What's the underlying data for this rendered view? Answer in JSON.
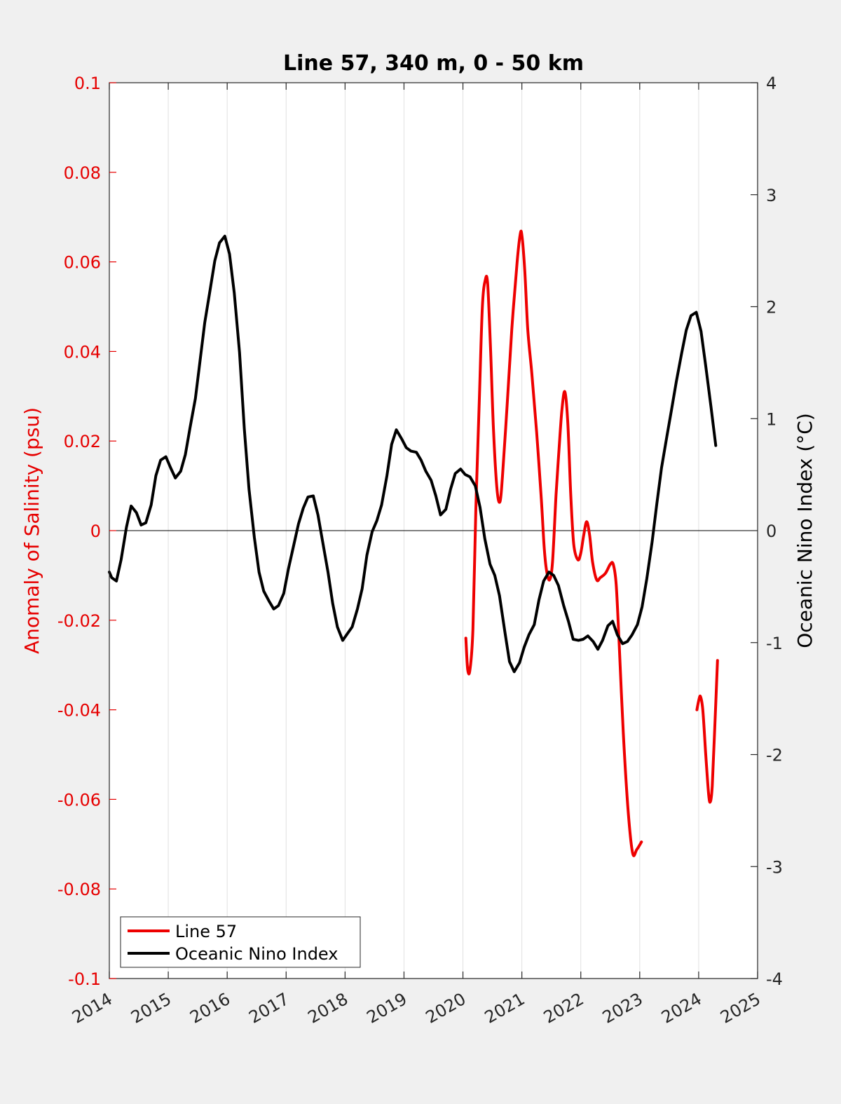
{
  "chart_data": {
    "type": "line",
    "title": "Line 57, 340 m, 0 - 50 km",
    "xlabel": "",
    "ylabel_left": "Anomaly of Salinity (psu)",
    "ylabel_right": "Oceanic Nino Index (°C)",
    "xlim": [
      2014,
      2025
    ],
    "ylim_left": [
      -0.1,
      0.1
    ],
    "ylim_right": [
      -4,
      4
    ],
    "x_ticks": [
      "2014",
      "2015",
      "2016",
      "2017",
      "2018",
      "2019",
      "2020",
      "2021",
      "2022",
      "2023",
      "2024",
      "2025"
    ],
    "y_ticks_left": [
      "0.1",
      "0.08",
      "0.06",
      "0.04",
      "0.02",
      "0",
      "-0.02",
      "-0.04",
      "-0.06",
      "-0.08",
      "-0.1"
    ],
    "y_ticks_right": [
      "4",
      "3",
      "2",
      "1",
      "0",
      "-1",
      "-2",
      "-3",
      "-4"
    ],
    "grid": "vertical",
    "legend_position": "bottom-left",
    "colors": {
      "left_axis": "#e60000",
      "line57": "#ee0000",
      "oni": "#000000"
    },
    "series": [
      {
        "name": "Line 57",
        "axis": "left",
        "segments": [
          [
            [
              2020.05,
              -0.024
            ],
            [
              2020.08,
              -0.031
            ],
            [
              2020.12,
              -0.031
            ],
            [
              2020.17,
              -0.022
            ],
            [
              2020.22,
              0.005
            ],
            [
              2020.28,
              0.03
            ],
            [
              2020.33,
              0.05
            ],
            [
              2020.38,
              0.056
            ],
            [
              2020.42,
              0.055
            ],
            [
              2020.47,
              0.04
            ],
            [
              2020.52,
              0.022
            ],
            [
              2020.58,
              0.009
            ],
            [
              2020.63,
              0.0065
            ],
            [
              2020.67,
              0.012
            ],
            [
              2020.75,
              0.028
            ],
            [
              2020.83,
              0.045
            ],
            [
              2020.92,
              0.06
            ],
            [
              2020.97,
              0.066
            ],
            [
              2021.0,
              0.066
            ],
            [
              2021.05,
              0.058
            ],
            [
              2021.1,
              0.045
            ],
            [
              2021.17,
              0.035
            ],
            [
              2021.25,
              0.022
            ],
            [
              2021.33,
              0.007
            ],
            [
              2021.38,
              -0.004
            ],
            [
              2021.42,
              -0.009
            ],
            [
              2021.47,
              -0.011
            ],
            [
              2021.52,
              -0.007
            ],
            [
              2021.58,
              0.008
            ],
            [
              2021.63,
              0.018
            ],
            [
              2021.68,
              0.027
            ],
            [
              2021.73,
              0.031
            ],
            [
              2021.78,
              0.024
            ],
            [
              2021.83,
              0.008
            ],
            [
              2021.88,
              -0.003
            ],
            [
              2021.95,
              -0.0065
            ],
            [
              2022.0,
              -0.005
            ],
            [
              2022.05,
              -0.001
            ],
            [
              2022.1,
              0.002
            ],
            [
              2022.15,
              -0.001
            ],
            [
              2022.2,
              -0.007
            ],
            [
              2022.27,
              -0.011
            ],
            [
              2022.33,
              -0.0105
            ],
            [
              2022.42,
              -0.0095
            ],
            [
              2022.5,
              -0.0075
            ],
            [
              2022.55,
              -0.0075
            ],
            [
              2022.6,
              -0.012
            ],
            [
              2022.65,
              -0.025
            ],
            [
              2022.72,
              -0.045
            ],
            [
              2022.8,
              -0.062
            ],
            [
              2022.88,
              -0.072
            ],
            [
              2022.95,
              -0.0712
            ],
            [
              2023.03,
              -0.0695
            ]
          ],
          [
            [
              2023.97,
              -0.04
            ],
            [
              2024.0,
              -0.038
            ],
            [
              2024.03,
              -0.037
            ],
            [
              2024.07,
              -0.04
            ],
            [
              2024.12,
              -0.05
            ],
            [
              2024.17,
              -0.059
            ],
            [
              2024.2,
              -0.0605
            ],
            [
              2024.23,
              -0.057
            ],
            [
              2024.27,
              -0.045
            ],
            [
              2024.32,
              -0.029
            ]
          ]
        ]
      },
      {
        "name": "Oceanic Nino Index",
        "axis": "right",
        "segments": [
          [
            [
              2014.0,
              -0.37
            ],
            [
              2014.04,
              -0.42
            ],
            [
              2014.12,
              -0.45
            ],
            [
              2014.2,
              -0.26
            ],
            [
              2014.29,
              0.03
            ],
            [
              2014.37,
              0.22
            ],
            [
              2014.46,
              0.16
            ],
            [
              2014.54,
              0.05
            ],
            [
              2014.62,
              0.07
            ],
            [
              2014.71,
              0.23
            ],
            [
              2014.79,
              0.49
            ],
            [
              2014.87,
              0.63
            ],
            [
              2014.96,
              0.66
            ],
            [
              2015.04,
              0.56
            ],
            [
              2015.12,
              0.47
            ],
            [
              2015.21,
              0.53
            ],
            [
              2015.29,
              0.68
            ],
            [
              2015.37,
              0.92
            ],
            [
              2015.46,
              1.18
            ],
            [
              2015.54,
              1.52
            ],
            [
              2015.62,
              1.86
            ],
            [
              2015.71,
              2.15
            ],
            [
              2015.79,
              2.41
            ],
            [
              2015.87,
              2.57
            ],
            [
              2015.96,
              2.63
            ],
            [
              2016.04,
              2.47
            ],
            [
              2016.12,
              2.12
            ],
            [
              2016.21,
              1.59
            ],
            [
              2016.29,
              0.91
            ],
            [
              2016.37,
              0.37
            ],
            [
              2016.46,
              -0.06
            ],
            [
              2016.54,
              -0.37
            ],
            [
              2016.62,
              -0.54
            ],
            [
              2016.71,
              -0.63
            ],
            [
              2016.79,
              -0.7
            ],
            [
              2016.87,
              -0.67
            ],
            [
              2016.96,
              -0.56
            ],
            [
              2017.04,
              -0.34
            ],
            [
              2017.12,
              -0.15
            ],
            [
              2017.21,
              0.06
            ],
            [
              2017.29,
              0.2
            ],
            [
              2017.37,
              0.3
            ],
            [
              2017.46,
              0.31
            ],
            [
              2017.54,
              0.14
            ],
            [
              2017.62,
              -0.1
            ],
            [
              2017.71,
              -0.37
            ],
            [
              2017.79,
              -0.65
            ],
            [
              2017.87,
              -0.86
            ],
            [
              2017.96,
              -0.98
            ],
            [
              2018.04,
              -0.92
            ],
            [
              2018.12,
              -0.86
            ],
            [
              2018.21,
              -0.7
            ],
            [
              2018.29,
              -0.52
            ],
            [
              2018.37,
              -0.22
            ],
            [
              2018.46,
              -0.01
            ],
            [
              2018.54,
              0.09
            ],
            [
              2018.62,
              0.23
            ],
            [
              2018.71,
              0.49
            ],
            [
              2018.79,
              0.77
            ],
            [
              2018.87,
              0.9
            ],
            [
              2018.96,
              0.82
            ],
            [
              2019.04,
              0.74
            ],
            [
              2019.12,
              0.71
            ],
            [
              2019.21,
              0.7
            ],
            [
              2019.29,
              0.63
            ],
            [
              2019.37,
              0.53
            ],
            [
              2019.46,
              0.45
            ],
            [
              2019.54,
              0.31
            ],
            [
              2019.62,
              0.14
            ],
            [
              2019.71,
              0.19
            ],
            [
              2019.79,
              0.37
            ],
            [
              2019.87,
              0.51
            ],
            [
              2019.96,
              0.55
            ],
            [
              2020.04,
              0.5
            ],
            [
              2020.12,
              0.48
            ],
            [
              2020.21,
              0.4
            ],
            [
              2020.29,
              0.21
            ],
            [
              2020.37,
              -0.07
            ],
            [
              2020.46,
              -0.3
            ],
            [
              2020.54,
              -0.4
            ],
            [
              2020.62,
              -0.58
            ],
            [
              2020.71,
              -0.9
            ],
            [
              2020.79,
              -1.17
            ],
            [
              2020.87,
              -1.26
            ],
            [
              2020.96,
              -1.18
            ],
            [
              2021.04,
              -1.04
            ],
            [
              2021.12,
              -0.93
            ],
            [
              2021.21,
              -0.84
            ],
            [
              2021.29,
              -0.62
            ],
            [
              2021.37,
              -0.45
            ],
            [
              2021.46,
              -0.37
            ],
            [
              2021.54,
              -0.4
            ],
            [
              2021.62,
              -0.49
            ],
            [
              2021.71,
              -0.67
            ],
            [
              2021.79,
              -0.81
            ],
            [
              2021.87,
              -0.97
            ],
            [
              2021.96,
              -0.98
            ],
            [
              2022.04,
              -0.97
            ],
            [
              2022.12,
              -0.94
            ],
            [
              2022.21,
              -0.99
            ],
            [
              2022.29,
              -1.06
            ],
            [
              2022.37,
              -0.98
            ],
            [
              2022.46,
              -0.85
            ],
            [
              2022.54,
              -0.81
            ],
            [
              2022.62,
              -0.93
            ],
            [
              2022.71,
              -1.01
            ],
            [
              2022.79,
              -0.99
            ],
            [
              2022.87,
              -0.93
            ],
            [
              2022.96,
              -0.84
            ],
            [
              2023.04,
              -0.68
            ],
            [
              2023.12,
              -0.43
            ],
            [
              2023.21,
              -0.1
            ],
            [
              2023.29,
              0.24
            ],
            [
              2023.37,
              0.56
            ],
            [
              2023.46,
              0.84
            ],
            [
              2023.54,
              1.08
            ],
            [
              2023.62,
              1.33
            ],
            [
              2023.71,
              1.58
            ],
            [
              2023.79,
              1.79
            ],
            [
              2023.87,
              1.92
            ],
            [
              2023.96,
              1.95
            ],
            [
              2024.04,
              1.78
            ],
            [
              2024.12,
              1.47
            ],
            [
              2024.21,
              1.1
            ],
            [
              2024.29,
              0.76
            ]
          ]
        ]
      }
    ]
  }
}
